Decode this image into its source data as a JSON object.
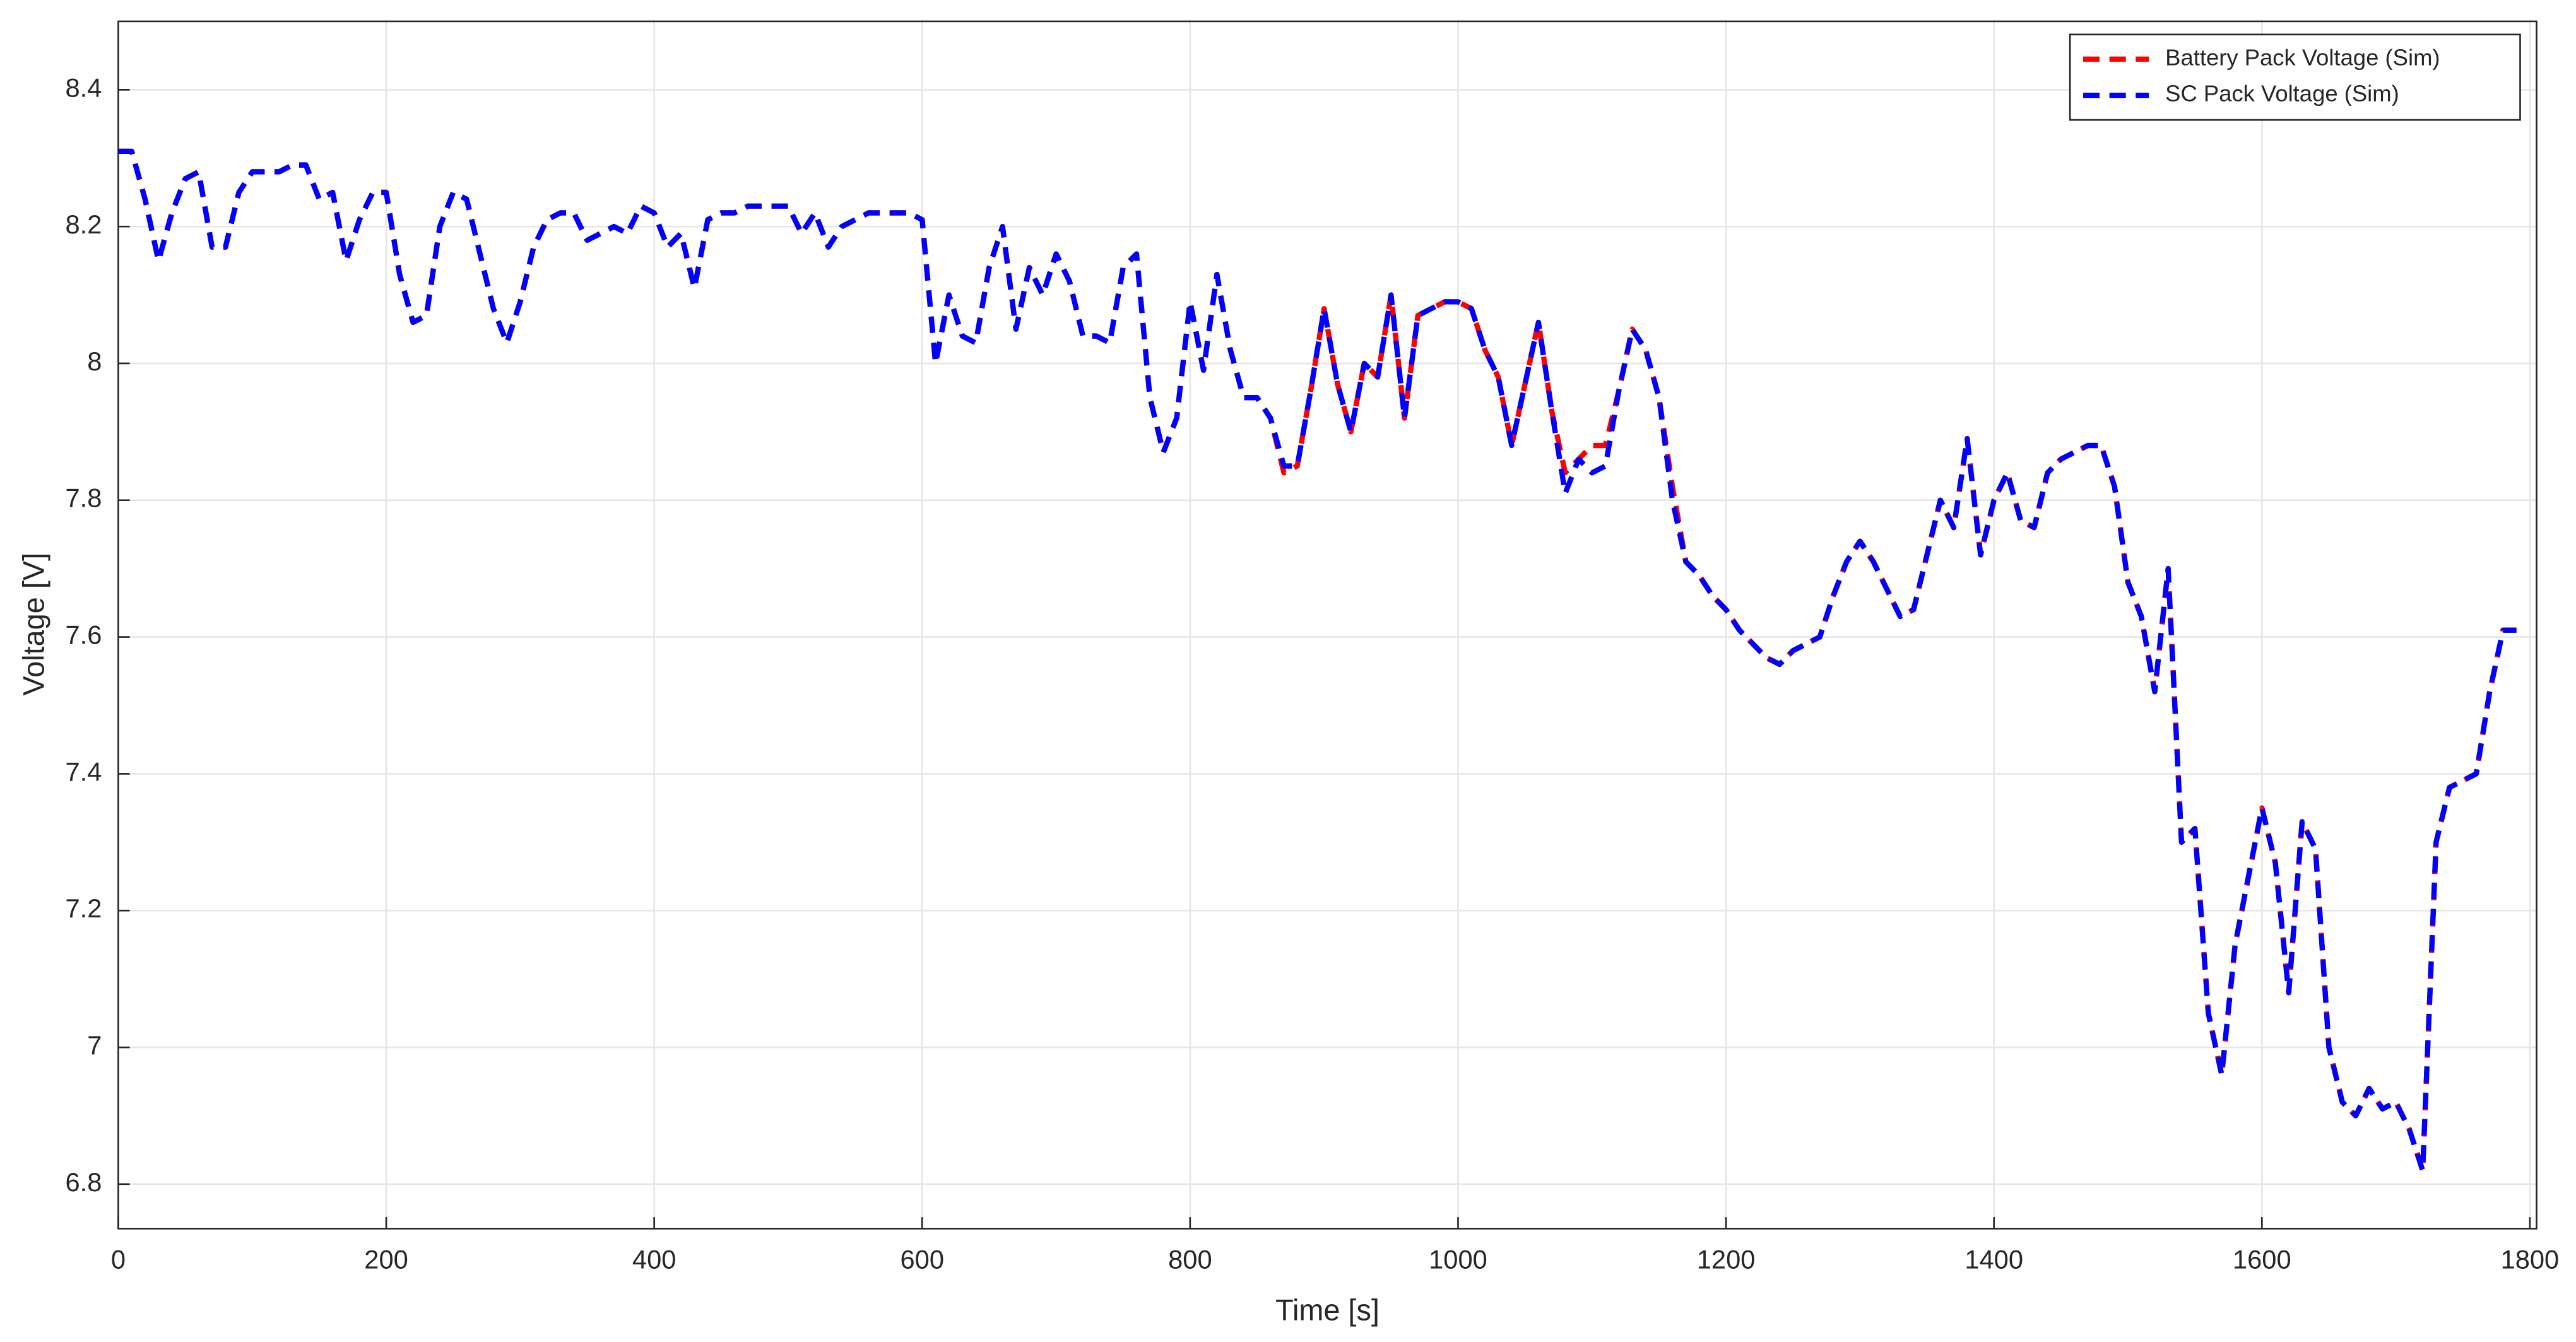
{
  "chart_data": {
    "type": "line",
    "xlabel": "Time [s]",
    "ylabel": "Voltage [V]",
    "xlim": [
      0,
      1805
    ],
    "ylim": [
      6.735,
      8.5
    ],
    "xticks": [
      0,
      200,
      400,
      600,
      800,
      1000,
      1200,
      1400,
      1600,
      1800
    ],
    "yticks": [
      6.8,
      7,
      7.2,
      7.4,
      7.6,
      7.8,
      8,
      8.2,
      8.4
    ],
    "grid": true,
    "legend": "top-right",
    "x": [
      0,
      10,
      20,
      30,
      40,
      50,
      60,
      70,
      80,
      90,
      100,
      110,
      120,
      130,
      140,
      150,
      160,
      170,
      180,
      190,
      200,
      210,
      220,
      230,
      240,
      250,
      260,
      270,
      280,
      290,
      300,
      310,
      320,
      330,
      340,
      350,
      360,
      370,
      380,
      390,
      400,
      410,
      420,
      430,
      440,
      450,
      460,
      470,
      480,
      490,
      500,
      510,
      520,
      530,
      540,
      550,
      560,
      570,
      580,
      590,
      600,
      610,
      620,
      630,
      640,
      650,
      660,
      670,
      680,
      690,
      700,
      710,
      720,
      730,
      740,
      750,
      760,
      770,
      780,
      790,
      800,
      810,
      820,
      830,
      840,
      850,
      860,
      870,
      880,
      890,
      900,
      910,
      920,
      930,
      940,
      950,
      960,
      970,
      980,
      990,
      1000,
      1010,
      1020,
      1030,
      1040,
      1050,
      1060,
      1070,
      1080,
      1090,
      1100,
      1110,
      1120,
      1130,
      1140,
      1150,
      1160,
      1170,
      1180,
      1190,
      1200,
      1210,
      1220,
      1230,
      1240,
      1250,
      1260,
      1270,
      1280,
      1290,
      1300,
      1310,
      1320,
      1330,
      1340,
      1350,
      1360,
      1370,
      1380,
      1390,
      1400,
      1410,
      1420,
      1430,
      1440,
      1450,
      1460,
      1470,
      1480,
      1490,
      1500,
      1510,
      1520,
      1530,
      1540,
      1550,
      1560,
      1570,
      1580,
      1590,
      1600,
      1610,
      1620,
      1630,
      1640,
      1650,
      1660,
      1670,
      1680,
      1690,
      1700,
      1710,
      1720,
      1730,
      1740,
      1750,
      1760,
      1770,
      1780,
      1790
    ],
    "series": [
      {
        "name": "Battery Pack Voltage (Sim)",
        "color": "#ff0000",
        "values": [
          8.31,
          8.31,
          8.24,
          8.15,
          8.22,
          8.27,
          8.28,
          8.17,
          8.17,
          8.25,
          8.28,
          8.28,
          8.28,
          8.29,
          8.29,
          8.24,
          8.25,
          8.15,
          8.21,
          8.25,
          8.25,
          8.13,
          8.06,
          8.07,
          8.2,
          8.25,
          8.24,
          8.16,
          8.08,
          8.03,
          8.09,
          8.17,
          8.21,
          8.22,
          8.22,
          8.18,
          8.19,
          8.2,
          8.19,
          8.23,
          8.22,
          8.17,
          8.19,
          8.11,
          8.21,
          8.22,
          8.22,
          8.23,
          8.23,
          8.23,
          8.23,
          8.19,
          8.22,
          8.17,
          8.2,
          8.21,
          8.22,
          8.22,
          8.22,
          8.22,
          8.21,
          8.0,
          8.1,
          8.04,
          8.03,
          8.14,
          8.2,
          8.05,
          8.14,
          8.1,
          8.16,
          8.12,
          8.04,
          8.04,
          8.03,
          8.14,
          8.16,
          7.95,
          7.87,
          7.92,
          8.09,
          7.99,
          8.13,
          8.02,
          7.95,
          7.95,
          7.92,
          7.84,
          7.85,
          7.96,
          8.08,
          7.97,
          7.9,
          8.0,
          7.98,
          8.1,
          7.92,
          8.07,
          8.08,
          8.09,
          8.09,
          8.08,
          8.02,
          7.98,
          7.88,
          7.97,
          8.06,
          7.93,
          7.84,
          7.86,
          7.88,
          7.88,
          7.96,
          8.05,
          8.02,
          7.95,
          7.82,
          7.71,
          7.69,
          7.66,
          7.64,
          7.61,
          7.59,
          7.57,
          7.56,
          7.58,
          7.59,
          7.6,
          7.66,
          7.71,
          7.74,
          7.71,
          7.67,
          7.63,
          7.64,
          7.72,
          7.8,
          7.76,
          7.89,
          7.72,
          7.8,
          7.84,
          7.77,
          7.76,
          7.84,
          7.86,
          7.87,
          7.88,
          7.88,
          7.82,
          7.68,
          7.63,
          7.52,
          7.7,
          7.3,
          7.32,
          7.05,
          6.96,
          7.15,
          7.25,
          7.35,
          7.27,
          7.08,
          7.33,
          7.29,
          7.0,
          6.92,
          6.9,
          6.94,
          6.91,
          6.92,
          6.88,
          6.82,
          7.3,
          7.38,
          7.39,
          7.4,
          7.52,
          7.61,
          7.61
        ]
      },
      {
        "name": "SC Pack Voltage (Sim)",
        "color": "#0000ff",
        "values": [
          8.31,
          8.31,
          8.24,
          8.15,
          8.22,
          8.27,
          8.28,
          8.17,
          8.17,
          8.25,
          8.28,
          8.28,
          8.28,
          8.29,
          8.29,
          8.24,
          8.25,
          8.15,
          8.21,
          8.25,
          8.25,
          8.13,
          8.06,
          8.07,
          8.2,
          8.25,
          8.24,
          8.16,
          8.08,
          8.03,
          8.09,
          8.17,
          8.21,
          8.22,
          8.22,
          8.18,
          8.19,
          8.2,
          8.19,
          8.23,
          8.22,
          8.17,
          8.19,
          8.11,
          8.21,
          8.22,
          8.22,
          8.23,
          8.23,
          8.23,
          8.23,
          8.19,
          8.22,
          8.17,
          8.2,
          8.21,
          8.22,
          8.22,
          8.22,
          8.22,
          8.21,
          8.0,
          8.1,
          8.04,
          8.03,
          8.14,
          8.2,
          8.05,
          8.14,
          8.1,
          8.16,
          8.12,
          8.04,
          8.04,
          8.03,
          8.14,
          8.16,
          7.95,
          7.87,
          7.92,
          8.09,
          7.99,
          8.13,
          8.02,
          7.95,
          7.95,
          7.92,
          7.85,
          7.85,
          7.96,
          8.08,
          7.97,
          7.9,
          8.0,
          7.98,
          8.1,
          7.92,
          8.07,
          8.08,
          8.09,
          8.09,
          8.08,
          8.02,
          7.98,
          7.88,
          7.97,
          8.06,
          7.93,
          7.81,
          7.86,
          7.84,
          7.85,
          7.96,
          8.05,
          8.02,
          7.95,
          7.8,
          7.71,
          7.69,
          7.66,
          7.64,
          7.61,
          7.59,
          7.57,
          7.56,
          7.58,
          7.59,
          7.6,
          7.66,
          7.71,
          7.74,
          7.71,
          7.67,
          7.63,
          7.64,
          7.72,
          7.8,
          7.76,
          7.89,
          7.72,
          7.8,
          7.84,
          7.77,
          7.76,
          7.84,
          7.86,
          7.87,
          7.88,
          7.88,
          7.82,
          7.68,
          7.63,
          7.52,
          7.7,
          7.3,
          7.32,
          7.05,
          6.96,
          7.15,
          7.25,
          7.35,
          7.27,
          7.08,
          7.33,
          7.29,
          7.0,
          6.92,
          6.9,
          6.94,
          6.91,
          6.92,
          6.88,
          6.82,
          7.3,
          7.38,
          7.39,
          7.4,
          7.52,
          7.61,
          7.61
        ]
      }
    ]
  }
}
